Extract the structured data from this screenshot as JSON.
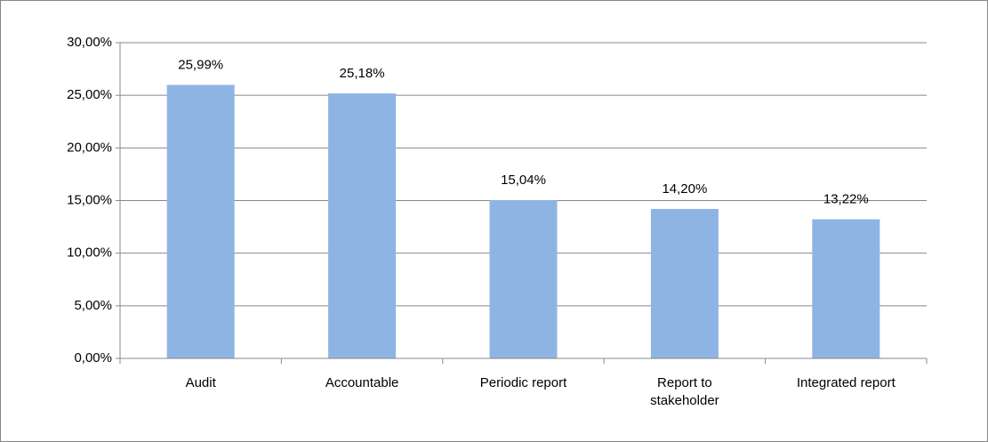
{
  "chart_data": {
    "type": "bar",
    "categories": [
      "Audit",
      "Accountable",
      "Periodic report",
      "Report to stakeholder",
      "Integrated report"
    ],
    "values": [
      25.99,
      25.18,
      15.04,
      14.2,
      13.22
    ],
    "value_labels": [
      "25,99%",
      "25,18%",
      "15,04%",
      "14,20%",
      "13,22%"
    ],
    "color": "#8eb4e3",
    "ylim": [
      0,
      30
    ],
    "yticks": [
      {
        "value": 0,
        "label": "0,00%"
      },
      {
        "value": 5,
        "label": "5,00%"
      },
      {
        "value": 10,
        "label": "10,00%"
      },
      {
        "value": 15,
        "label": "15,00%"
      },
      {
        "value": 20,
        "label": "20,00%"
      },
      {
        "value": 25,
        "label": "25,00%"
      },
      {
        "value": 30,
        "label": "30,00%"
      }
    ],
    "grid": true
  }
}
